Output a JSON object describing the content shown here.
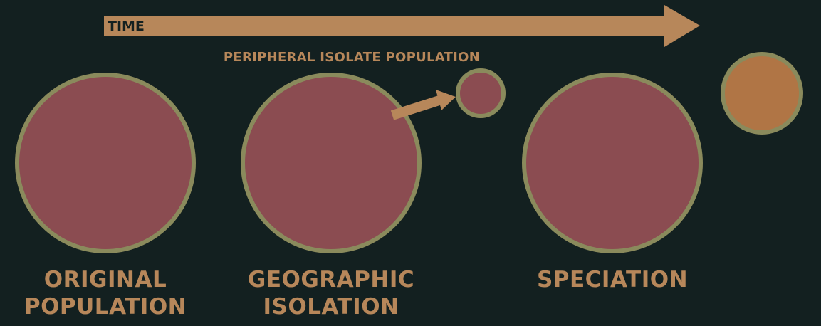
{
  "timeline": {
    "label": "TIME"
  },
  "stages": [
    {
      "line1": "ORIGINAL",
      "line2": "POPULATION"
    },
    {
      "line1": "GEOGRAPHIC",
      "line2": "ISOLATION"
    },
    {
      "line1": "SPECIATION",
      "line2": ""
    }
  ],
  "annotations": {
    "isolate": "PERIPHERAL ISOLATE POPULATION"
  },
  "colors": {
    "background": "#132020",
    "accent": "#b7875a",
    "population_fill": "#8b4c51",
    "population_border": "#8a8a5c",
    "new_species_fill": "#b07545"
  }
}
